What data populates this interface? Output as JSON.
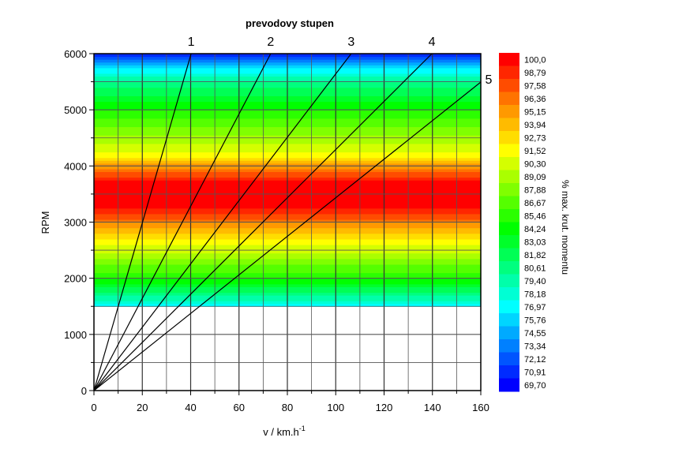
{
  "chart_data": {
    "type": "heatmap",
    "title": "prevodovy stupen",
    "xlabel": "v / km.h",
    "xlabel_superscript": "-1",
    "ylabel": "RPM",
    "xlim": [
      0,
      160
    ],
    "ylim": [
      0,
      6000
    ],
    "xticks": [
      "0",
      "20",
      "40",
      "60",
      "80",
      "100",
      "120",
      "140",
      "160"
    ],
    "yticks": [
      "0",
      "1000",
      "2000",
      "3000",
      "4000",
      "5000",
      "6000"
    ],
    "grid": true,
    "heatmap_rpm_range": [
      1500,
      6000
    ],
    "heatmap_profile": {
      "rpm": [
        1500,
        1700,
        2000,
        2500,
        2800,
        3000,
        3300,
        3700,
        4000,
        4200,
        4500,
        5000,
        5500,
        5700,
        6000
      ],
      "percent": [
        77,
        80,
        85,
        90,
        93,
        96,
        100,
        100,
        95,
        91.5,
        89,
        85,
        80,
        77,
        69.7
      ]
    },
    "gear_lines": [
      {
        "name": "1",
        "x": [
          0,
          40.2
        ],
        "y": [
          0,
          6000
        ]
      },
      {
        "name": "2",
        "x": [
          0,
          73.1
        ],
        "y": [
          0,
          6000
        ]
      },
      {
        "name": "3",
        "x": [
          0,
          106.4
        ],
        "y": [
          0,
          6000
        ]
      },
      {
        "name": "4",
        "x": [
          0,
          139.8
        ],
        "y": [
          0,
          6000
        ]
      },
      {
        "name": "5",
        "x": [
          0,
          160
        ],
        "y": [
          0,
          5494
        ]
      }
    ],
    "colorbar": {
      "label": "% max. krut. momentu",
      "levels": [
        "100,0",
        "98,79",
        "97,58",
        "96,36",
        "95,15",
        "93,94",
        "92,73",
        "91,52",
        "90,30",
        "89,09",
        "87,88",
        "86,67",
        "85,46",
        "84,24",
        "83,03",
        "81,82",
        "80,61",
        "79,40",
        "78,18",
        "76,97",
        "75,76",
        "74,55",
        "73,34",
        "72,12",
        "70,91",
        "69,70"
      ],
      "min": 69.7,
      "max": 100.0,
      "colors": {
        "69.7": "#0000ff",
        "76.97": "#00ffff",
        "84.24": "#00ff00",
        "91.52": "#ffff00",
        "95.15": "#ff9900",
        "100": "#ff0000"
      }
    }
  }
}
